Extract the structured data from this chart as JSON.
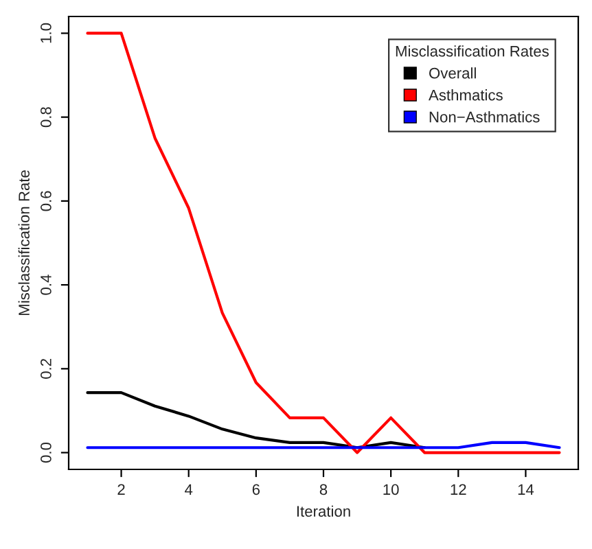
{
  "chart_data": {
    "type": "line",
    "xlabel": "Iteration",
    "ylabel": "Misclassification Rate",
    "legend_title": "Misclassification Rates",
    "x": [
      1,
      2,
      3,
      4,
      5,
      6,
      7,
      8,
      9,
      10,
      11,
      12,
      13,
      14,
      15
    ],
    "series": [
      {
        "name": "Overall",
        "color": "#000000",
        "values": [
          0.143,
          0.143,
          0.111,
          0.087,
          0.056,
          0.035,
          0.024,
          0.024,
          0.012,
          0.024,
          0.012,
          null,
          null,
          null,
          null
        ]
      },
      {
        "name": "Asthmatics",
        "color": "#ff0000",
        "values": [
          1.0,
          1.0,
          0.75,
          0.583,
          0.333,
          0.167,
          0.083,
          0.083,
          0.0,
          0.083,
          0.0,
          0.0,
          0.0,
          0.0,
          0.0
        ]
      },
      {
        "name": "Non−Asthmatics",
        "color": "#0000ff",
        "values": [
          0.012,
          0.012,
          0.012,
          0.012,
          0.012,
          0.012,
          0.012,
          0.012,
          0.012,
          0.012,
          0.012,
          0.012,
          0.024,
          0.024,
          0.012
        ]
      }
    ],
    "xlim": [
      0.44,
      15.56
    ],
    "ylim": [
      -0.04,
      1.04
    ],
    "xticks": [
      2,
      4,
      6,
      8,
      10,
      12,
      14
    ],
    "yticks": [
      {
        "value": 0,
        "label": "0.0"
      },
      {
        "value": 0.2,
        "label": "0.2"
      },
      {
        "value": 0.4,
        "label": "0.4"
      },
      {
        "value": 0.6,
        "label": "0.6"
      },
      {
        "value": 0.8,
        "label": "0.8"
      },
      {
        "value": 1.0,
        "label": "1.0"
      }
    ],
    "grid": false,
    "legend": "top right",
    "marker": "none",
    "line_style": "solid"
  }
}
